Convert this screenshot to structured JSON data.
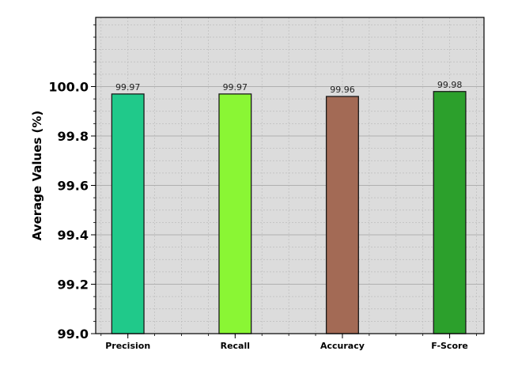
{
  "chart_data": {
    "type": "bar",
    "title": "",
    "xlabel": "",
    "ylabel": "Average Values (%)",
    "categories": [
      "Precision",
      "Recall",
      "Accuracy",
      "F-Score"
    ],
    "values": [
      99.97,
      99.97,
      99.96,
      99.98
    ],
    "data_labels": [
      "99.97",
      "99.97",
      "99.96",
      "99.98"
    ],
    "colors": [
      "#20c98a",
      "#8af634",
      "#a36a55",
      "#2ca02c"
    ],
    "ylim": [
      99.0,
      100.28
    ],
    "yticks": [
      "99.0",
      "99.2",
      "99.4",
      "99.6",
      "99.8",
      "100.0"
    ],
    "grid": true,
    "background": "#dcdcdc"
  }
}
